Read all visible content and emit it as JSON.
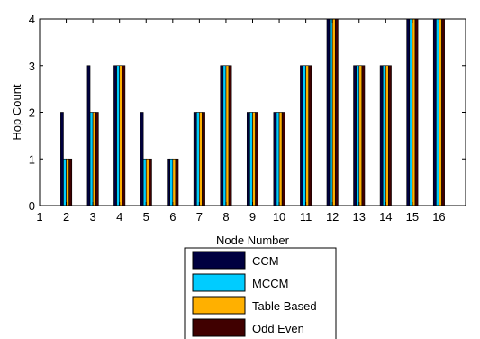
{
  "chart_data": {
    "type": "bar",
    "title": "",
    "xlabel": "Node Number",
    "ylabel": "Hop Count",
    "x_ticks": [
      "1",
      "2",
      "3",
      "4",
      "5",
      "6",
      "7",
      "8",
      "9",
      "10",
      "11",
      "12",
      "13",
      "14",
      "15",
      "16"
    ],
    "y_ticks": [
      "0",
      "1",
      "2",
      "3",
      "4"
    ],
    "xlim": [
      1,
      17
    ],
    "ylim": [
      0,
      4
    ],
    "categories": [
      "2",
      "3",
      "4",
      "5",
      "6",
      "7",
      "8",
      "9",
      "10",
      "11",
      "12",
      "13",
      "14",
      "15",
      "16"
    ],
    "series": [
      {
        "name": "CCM",
        "color": "#000040",
        "values": [
          2,
          3,
          3,
          2,
          1,
          2,
          3,
          2,
          2,
          3,
          4,
          3,
          3,
          4,
          4
        ]
      },
      {
        "name": "MCCM",
        "color": "#00ccff",
        "values": [
          1,
          2,
          3,
          1,
          1,
          2,
          3,
          2,
          2,
          3,
          4,
          3,
          3,
          4,
          4
        ]
      },
      {
        "name": "Table Based",
        "color": "#ffb000",
        "values": [
          1,
          2,
          3,
          1,
          1,
          2,
          3,
          2,
          2,
          3,
          4,
          3,
          3,
          4,
          4
        ]
      },
      {
        "name": "Odd Even",
        "color": "#400000",
        "values": [
          1,
          2,
          3,
          1,
          1,
          2,
          3,
          2,
          2,
          3,
          4,
          3,
          3,
          4,
          4
        ]
      }
    ],
    "grid": false,
    "legend_position": "bottom-center"
  }
}
